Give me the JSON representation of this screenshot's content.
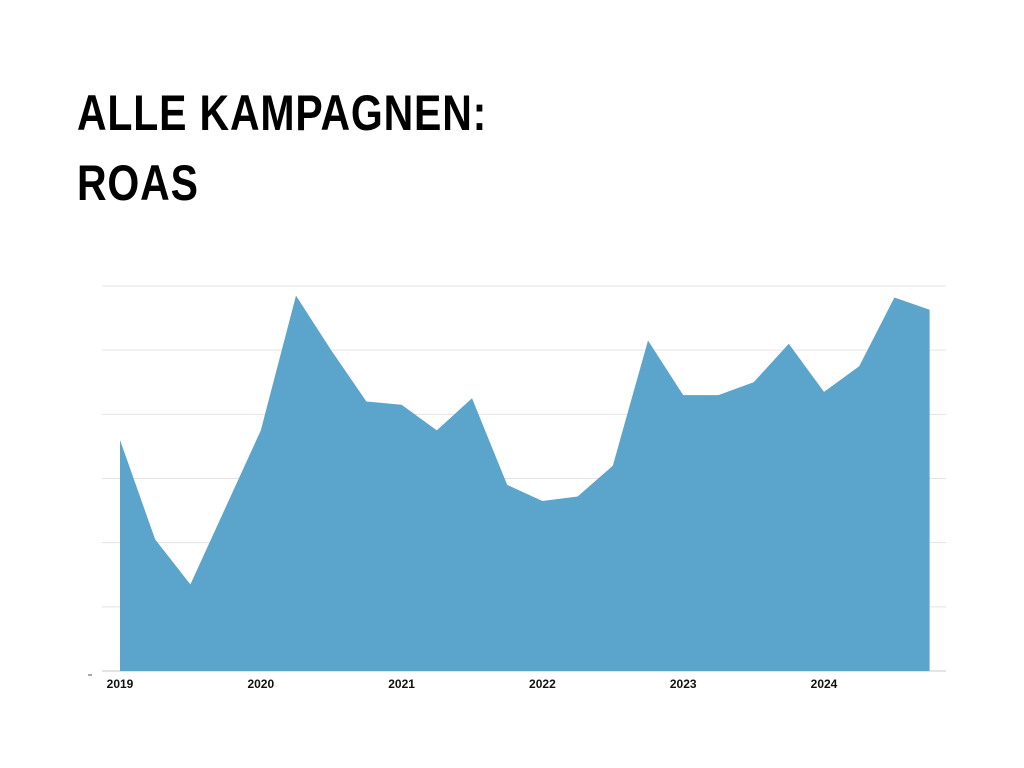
{
  "title": {
    "line1": "ALLE KAMPAGNEN:",
    "line2": "ROAS"
  },
  "chart_data": {
    "type": "area",
    "title": "ALLE KAMPAGNEN: ROAS",
    "xlabel": "",
    "ylabel": "",
    "x_tick_labels": [
      "2019",
      "2020",
      "2021",
      "2022",
      "2023",
      "2024"
    ],
    "x": [
      "2019-Q1",
      "2019-Q2",
      "2019-Q3",
      "2019-Q4",
      "2020-Q1",
      "2020-Q2",
      "2020-Q3",
      "2020-Q4",
      "2021-Q1",
      "2021-Q2",
      "2021-Q3",
      "2021-Q4",
      "2022-Q1",
      "2022-Q2",
      "2022-Q3",
      "2022-Q4",
      "2023-Q1",
      "2023-Q2",
      "2023-Q3",
      "2023-Q4",
      "2024-Q1",
      "2024-Q2",
      "2024-Q3",
      "2024-Q4"
    ],
    "series": [
      {
        "values": [
          3.6,
          2.05,
          1.35,
          2.55,
          3.75,
          5.85,
          5.0,
          4.2,
          4.15,
          3.75,
          4.25,
          2.9,
          2.65,
          2.72,
          3.2,
          5.15,
          4.3,
          4.3,
          4.5,
          5.1,
          4.35,
          4.75,
          5.82,
          5.63
        ],
        "color": "#5ba4cb"
      }
    ],
    "ylim": [
      0,
      6
    ],
    "grid": true,
    "legend": "none",
    "colors": {
      "area": "#5ba4cb",
      "grid": "#e3e3e3",
      "baseline": "#c8c8c8"
    }
  }
}
